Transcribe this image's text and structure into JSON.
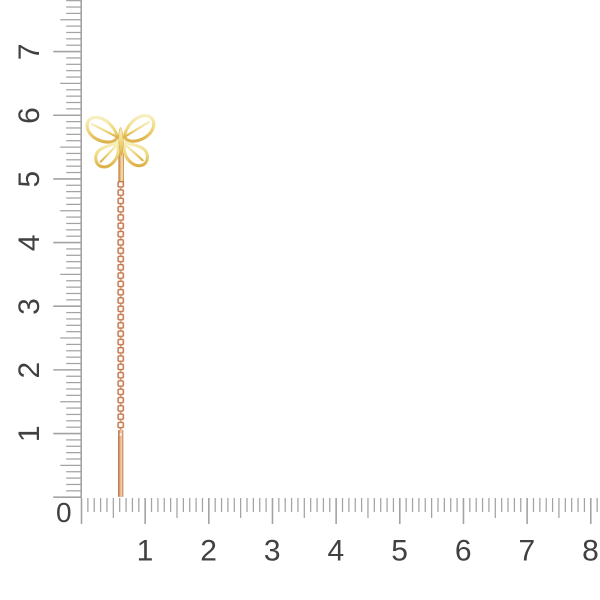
{
  "scene": {
    "description": "Gold butterfly threader earring with cable chain photographed on white, with centimeter rulers along left and bottom edges"
  },
  "rulers": {
    "origin_label": "0",
    "vertical": {
      "labels": [
        "1",
        "2",
        "3",
        "4",
        "5",
        "6",
        "7"
      ],
      "extent_cm": 7.8
    },
    "horizontal": {
      "labels": [
        "1",
        "2",
        "3",
        "4",
        "5",
        "6",
        "7",
        "8"
      ],
      "extent_cm": 8.1
    }
  },
  "jewelry": {
    "name": "butterfly-threader-earring",
    "parts": [
      "butterfly-charm",
      "ear-post",
      "cable-chain",
      "threader-bar"
    ]
  },
  "colors": {
    "background": "#ffffff",
    "ruler_tick": "#a3a3a3",
    "ruler_label": "#414141",
    "butterfly_gold_light": "#f8efc0",
    "butterfly_gold": "#efd97f",
    "butterfly_gold_deep": "#ddb148",
    "chain_rose": "#c4754a",
    "chain_rose_light": "#f0c894",
    "bar_rose_deep": "#a55f3b"
  }
}
